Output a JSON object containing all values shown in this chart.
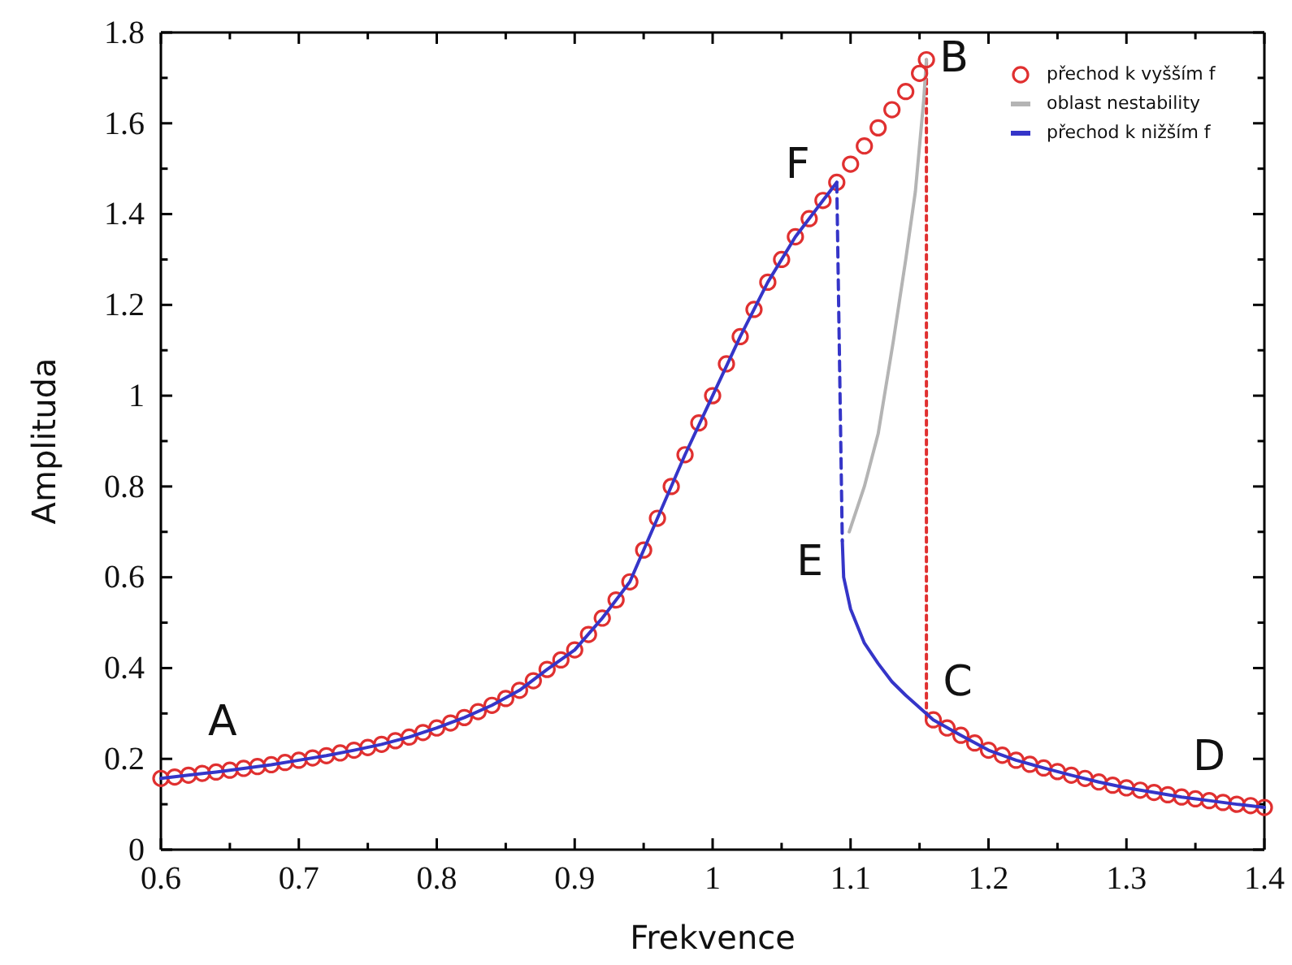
{
  "chart_data": {
    "type": "line",
    "xlabel": "Frekvence",
    "ylabel": "Amplituda",
    "xlim": [
      0.6,
      1.4
    ],
    "ylim": [
      0,
      1.8
    ],
    "xticks": [
      0.6,
      {
        "value": 0.65,
        "label": null
      },
      0.7,
      {
        "value": 0.75,
        "label": null
      },
      0.8,
      {
        "value": 0.85,
        "label": null
      },
      0.9,
      {
        "value": 0.95,
        "label": null
      },
      1,
      {
        "value": 1.05,
        "label": null
      },
      1.1,
      {
        "value": 1.15,
        "label": null
      },
      1.2,
      {
        "value": 1.25,
        "label": null
      },
      1.3,
      {
        "value": 1.35,
        "label": null
      },
      1.4
    ],
    "yticks": [
      0,
      {
        "value": 0.1,
        "label": null
      },
      0.2,
      {
        "value": 0.3,
        "label": null
      },
      0.4,
      {
        "value": 0.5,
        "label": null
      },
      0.6,
      {
        "value": 0.7,
        "label": null
      },
      0.8,
      {
        "value": 0.9,
        "label": null
      },
      1,
      {
        "value": 1.1,
        "label": null
      },
      1.2,
      {
        "value": 1.3,
        "label": null
      },
      1.4,
      {
        "value": 1.5,
        "label": null
      },
      1.6,
      {
        "value": 1.7,
        "label": null
      },
      1.8
    ],
    "grid": false,
    "legend": "top right",
    "series": [
      {
        "color": "#e03030",
        "line_style": "dotted",
        "x": [
          1.155,
          1.155
        ],
        "values": [
          1.74,
          0.29
        ]
      },
      {
        "name": "oblast nestability",
        "color": "#b4b4b4",
        "line_style": "solid",
        "x": [
          1.099,
          1.11,
          1.12,
          1.131,
          1.14,
          1.147,
          1.153,
          1.155
        ],
        "values": [
          0.7,
          0.8,
          0.916,
          1.12,
          1.3,
          1.45,
          1.65,
          1.74
        ]
      },
      {
        "type": "scatter",
        "name": "přechod k vyšším f",
        "color": "#e03030",
        "marker": "circle",
        "x": [
          0.6,
          0.61,
          0.62,
          0.63,
          0.64,
          0.65,
          0.66,
          0.67,
          0.68,
          0.69,
          0.7,
          0.71,
          0.72,
          0.73,
          0.74,
          0.75,
          0.76,
          0.77,
          0.78,
          0.79,
          0.8,
          0.81,
          0.82,
          0.83,
          0.84,
          0.85,
          0.86,
          0.87,
          0.88,
          0.89,
          0.9,
          0.91,
          0.92,
          0.93,
          0.94,
          0.95,
          0.96,
          0.97,
          0.98,
          0.99,
          1.0,
          1.01,
          1.02,
          1.03,
          1.04,
          1.05,
          1.06,
          1.07,
          1.08,
          1.09,
          1.1,
          1.11,
          1.12,
          1.13,
          1.14,
          1.15,
          1.155,
          1.16,
          1.17,
          1.18,
          1.19,
          1.2,
          1.21,
          1.22,
          1.23,
          1.24,
          1.25,
          1.26,
          1.27,
          1.28,
          1.29,
          1.3,
          1.31,
          1.32,
          1.33,
          1.34,
          1.35,
          1.36,
          1.37,
          1.38,
          1.39,
          1.4
        ],
        "values": [
          0.157,
          0.16,
          0.164,
          0.168,
          0.171,
          0.175,
          0.179,
          0.183,
          0.187,
          0.192,
          0.197,
          0.202,
          0.207,
          0.213,
          0.219,
          0.225,
          0.232,
          0.24,
          0.248,
          0.258,
          0.268,
          0.279,
          0.291,
          0.304,
          0.318,
          0.333,
          0.351,
          0.372,
          0.397,
          0.418,
          0.44,
          0.474,
          0.51,
          0.55,
          0.59,
          0.66,
          0.73,
          0.8,
          0.87,
          0.94,
          1.0,
          1.07,
          1.13,
          1.19,
          1.25,
          1.3,
          1.35,
          1.39,
          1.43,
          1.47,
          1.51,
          1.55,
          1.59,
          1.63,
          1.67,
          1.71,
          1.74,
          0.286,
          0.268,
          0.252,
          0.235,
          0.219,
          0.208,
          0.197,
          0.188,
          0.18,
          0.172,
          0.164,
          0.157,
          0.149,
          0.142,
          0.136,
          0.131,
          0.126,
          0.121,
          0.116,
          0.112,
          0.108,
          0.104,
          0.1,
          0.097,
          0.093
        ]
      },
      {
        "color": "#3535c8",
        "line_style": "dashed",
        "x": [
          1.09,
          1.094
        ],
        "values": [
          1.47,
          0.68
        ]
      },
      {
        "name": "přechod k nižším f",
        "color": "#3535c8",
        "line_style": "solid",
        "x": [
          0.6,
          0.62,
          0.64,
          0.66,
          0.68,
          0.7,
          0.72,
          0.74,
          0.76,
          0.78,
          0.8,
          0.82,
          0.84,
          0.86,
          0.88,
          0.9,
          0.92,
          0.94,
          0.96,
          0.98,
          1.0,
          1.02,
          1.04,
          1.06,
          1.08,
          1.09,
          1.092,
          1.094,
          1.095,
          1.1,
          1.11,
          1.12,
          1.13,
          1.14,
          1.16,
          1.18,
          1.2,
          1.22,
          1.24,
          1.26,
          1.28,
          1.3,
          1.32,
          1.34,
          1.36,
          1.38,
          1.4
        ],
        "values": [
          0.157,
          0.164,
          0.171,
          0.179,
          0.187,
          0.197,
          0.207,
          0.219,
          0.232,
          0.248,
          0.268,
          0.291,
          0.318,
          0.351,
          0.397,
          0.44,
          0.51,
          0.59,
          0.73,
          0.87,
          1.0,
          1.13,
          1.25,
          1.35,
          1.43,
          1.47,
          null,
          0.68,
          0.6,
          0.53,
          0.455,
          0.41,
          0.37,
          0.34,
          0.286,
          0.252,
          0.219,
          0.197,
          0.18,
          0.164,
          0.149,
          0.136,
          0.126,
          0.116,
          0.108,
          0.1,
          0.093
        ]
      }
    ],
    "annotations": [
      {
        "text": "A",
        "x": 0.64,
        "y": 0.171
      },
      {
        "text": "B",
        "x": 1.155,
        "y": 1.74
      },
      {
        "text": "C",
        "x": 1.16,
        "y": 0.286
      },
      {
        "text": "D",
        "x": 1.36,
        "y": 0.108
      },
      {
        "text": "E",
        "x": 1.094,
        "y": 0.68
      },
      {
        "text": "F",
        "x": 1.09,
        "y": 1.47
      }
    ]
  }
}
